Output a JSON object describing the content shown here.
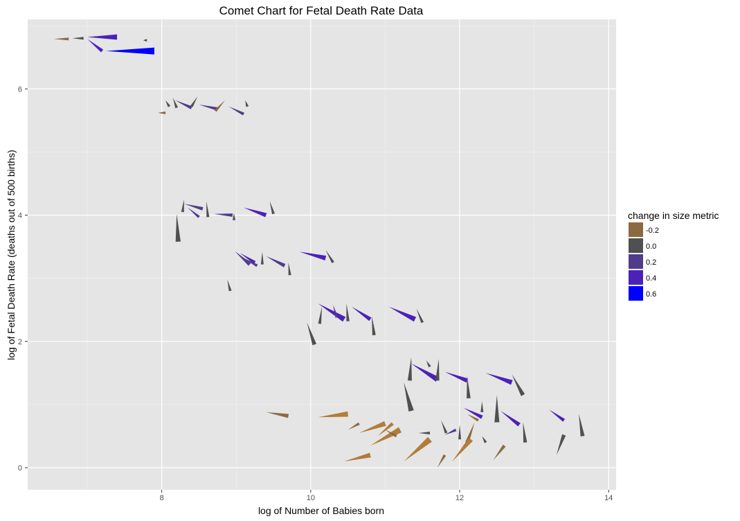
{
  "chart_data": {
    "type": "scatter",
    "title": "Comet Chart for Fetal Death Rate Data",
    "xlabel": "log of Number of Babies born",
    "ylabel": "log of Fetal Death Rate (deaths out of 500 births)",
    "xlim": [
      6.2,
      14.1
    ],
    "ylim": [
      -0.35,
      7.1
    ],
    "x_ticks": [
      8,
      10,
      12,
      14
    ],
    "y_ticks": [
      0,
      2,
      4,
      6
    ],
    "x_tick_labels": [
      "8",
      "10",
      "12",
      "14"
    ],
    "y_tick_labels": [
      "0",
      "2",
      "4",
      "6"
    ],
    "grid": true,
    "legend": {
      "title": "change in size metric",
      "position": "right",
      "items": [
        {
          "label": "-0.2",
          "color": "#8b6a42"
        },
        {
          "label": "0.0",
          "color": "#505050"
        },
        {
          "label": "0.2",
          "color": "#513c8b"
        },
        {
          "label": "0.4",
          "color": "#4b22b8"
        },
        {
          "label": "0.6",
          "color": "#0000ff"
        }
      ]
    },
    "comets": [
      {
        "x0": 6.55,
        "y0": 6.79,
        "x1": 6.75,
        "y1": 6.79,
        "c": "#8b6a42"
      },
      {
        "x0": 6.8,
        "y0": 6.8,
        "x1": 6.95,
        "y1": 6.8,
        "c": "#505050"
      },
      {
        "x0": 7.0,
        "y0": 6.82,
        "x1": 7.4,
        "y1": 6.82,
        "c": "#4b22b8"
      },
      {
        "x0": 7.0,
        "y0": 6.79,
        "x1": 7.2,
        "y1": 6.6,
        "c": "#4b22b8"
      },
      {
        "x0": 7.75,
        "y0": 6.77,
        "x1": 7.8,
        "y1": 6.77,
        "c": "#505050"
      },
      {
        "x0": 7.25,
        "y0": 6.6,
        "x1": 7.9,
        "y1": 6.6,
        "c": "#0000ff"
      },
      {
        "x0": 7.95,
        "y0": 5.62,
        "x1": 8.05,
        "y1": 5.62,
        "c": "#8b6a42"
      },
      {
        "x0": 8.05,
        "y0": 5.82,
        "x1": 8.1,
        "y1": 5.72,
        "c": "#505050"
      },
      {
        "x0": 8.15,
        "y0": 5.86,
        "x1": 8.2,
        "y1": 5.7,
        "c": "#505050"
      },
      {
        "x0": 8.18,
        "y0": 5.82,
        "x1": 8.4,
        "y1": 5.7,
        "c": "#513c8b"
      },
      {
        "x0": 8.48,
        "y0": 5.88,
        "x1": 8.4,
        "y1": 5.72,
        "c": "#505050"
      },
      {
        "x0": 8.5,
        "y0": 5.75,
        "x1": 8.75,
        "y1": 5.68,
        "c": "#513c8b"
      },
      {
        "x0": 8.85,
        "y0": 5.82,
        "x1": 8.72,
        "y1": 5.65,
        "c": "#8b6a42"
      },
      {
        "x0": 8.9,
        "y0": 5.72,
        "x1": 9.1,
        "y1": 5.6,
        "c": "#513c8b"
      },
      {
        "x0": 9.12,
        "y0": 5.82,
        "x1": 9.15,
        "y1": 5.72,
        "c": "#505050"
      },
      {
        "x0": 8.3,
        "y0": 4.25,
        "x1": 8.28,
        "y1": 4.05,
        "c": "#505050"
      },
      {
        "x0": 8.3,
        "y0": 4.18,
        "x1": 8.55,
        "y1": 4.1,
        "c": "#513c8b"
      },
      {
        "x0": 8.35,
        "y0": 4.12,
        "x1": 8.5,
        "y1": 3.97,
        "c": "#513c8b"
      },
      {
        "x0": 8.6,
        "y0": 4.22,
        "x1": 8.62,
        "y1": 3.97,
        "c": "#505050"
      },
      {
        "x0": 8.7,
        "y0": 4.02,
        "x1": 8.95,
        "y1": 4.0,
        "c": "#513c8b"
      },
      {
        "x0": 8.97,
        "y0": 4.03,
        "x1": 8.97,
        "y1": 3.92,
        "c": "#505050"
      },
      {
        "x0": 9.1,
        "y0": 4.12,
        "x1": 9.4,
        "y1": 4.0,
        "c": "#4b22b8"
      },
      {
        "x0": 9.45,
        "y0": 4.22,
        "x1": 9.5,
        "y1": 4.02,
        "c": "#505050"
      },
      {
        "x0": 8.2,
        "y0": 4.02,
        "x1": 8.22,
        "y1": 3.58,
        "c": "#505050"
      },
      {
        "x0": 8.98,
        "y0": 3.43,
        "x1": 9.18,
        "y1": 3.22,
        "c": "#513c8b"
      },
      {
        "x0": 9.05,
        "y0": 3.4,
        "x1": 9.25,
        "y1": 3.25,
        "c": "#4b22b8"
      },
      {
        "x0": 9.1,
        "y0": 3.32,
        "x1": 9.28,
        "y1": 3.2,
        "c": "#513c8b"
      },
      {
        "x0": 9.35,
        "y0": 3.42,
        "x1": 9.35,
        "y1": 3.22,
        "c": "#505050"
      },
      {
        "x0": 9.4,
        "y0": 3.35,
        "x1": 9.65,
        "y1": 3.2,
        "c": "#513c8b"
      },
      {
        "x0": 9.7,
        "y0": 3.25,
        "x1": 9.72,
        "y1": 3.05,
        "c": "#505050"
      },
      {
        "x0": 9.85,
        "y0": 3.42,
        "x1": 10.2,
        "y1": 3.32,
        "c": "#4b22b8"
      },
      {
        "x0": 10.2,
        "y0": 3.45,
        "x1": 10.3,
        "y1": 3.25,
        "c": "#505050"
      },
      {
        "x0": 8.88,
        "y0": 2.98,
        "x1": 8.92,
        "y1": 2.8,
        "c": "#505050"
      },
      {
        "x0": 10.1,
        "y0": 2.6,
        "x1": 10.45,
        "y1": 2.35,
        "c": "#4b22b8"
      },
      {
        "x0": 10.15,
        "y0": 2.55,
        "x1": 10.12,
        "y1": 2.28,
        "c": "#505050"
      },
      {
        "x0": 10.3,
        "y0": 2.58,
        "x1": 10.35,
        "y1": 2.38,
        "c": "#513c8b"
      },
      {
        "x0": 10.48,
        "y0": 2.6,
        "x1": 10.5,
        "y1": 2.32,
        "c": "#505050"
      },
      {
        "x0": 10.55,
        "y0": 2.55,
        "x1": 10.8,
        "y1": 2.35,
        "c": "#4b22b8"
      },
      {
        "x0": 10.82,
        "y0": 2.4,
        "x1": 10.85,
        "y1": 2.1,
        "c": "#505050"
      },
      {
        "x0": 11.05,
        "y0": 2.55,
        "x1": 11.4,
        "y1": 2.35,
        "c": "#4b22b8"
      },
      {
        "x0": 11.42,
        "y0": 2.52,
        "x1": 11.5,
        "y1": 2.3,
        "c": "#505050"
      },
      {
        "x0": 9.95,
        "y0": 2.3,
        "x1": 10.05,
        "y1": 1.95,
        "c": "#505050"
      },
      {
        "x0": 11.35,
        "y0": 1.75,
        "x1": 11.33,
        "y1": 1.38,
        "c": "#505050"
      },
      {
        "x0": 11.35,
        "y0": 1.65,
        "x1": 11.7,
        "y1": 1.4,
        "c": "#4b22b8"
      },
      {
        "x0": 11.55,
        "y0": 1.7,
        "x1": 11.6,
        "y1": 1.6,
        "c": "#505050"
      },
      {
        "x0": 11.72,
        "y0": 1.72,
        "x1": 11.7,
        "y1": 1.38,
        "c": "#505050"
      },
      {
        "x0": 11.8,
        "y0": 1.52,
        "x1": 12.1,
        "y1": 1.38,
        "c": "#4b22b8"
      },
      {
        "x0": 12.1,
        "y0": 1.45,
        "x1": 12.12,
        "y1": 1.1,
        "c": "#505050"
      },
      {
        "x0": 12.35,
        "y0": 1.5,
        "x1": 12.7,
        "y1": 1.35,
        "c": "#4b22b8"
      },
      {
        "x0": 12.7,
        "y0": 1.48,
        "x1": 12.85,
        "y1": 1.15,
        "c": "#505050"
      },
      {
        "x0": 11.25,
        "y0": 1.35,
        "x1": 11.35,
        "y1": 0.9,
        "c": "#505050"
      },
      {
        "x0": 12.5,
        "y0": 1.15,
        "x1": 12.5,
        "y1": 0.72,
        "c": "#505050"
      },
      {
        "x0": 12.3,
        "y0": 1.05,
        "x1": 12.3,
        "y1": 0.88,
        "c": "#505050"
      },
      {
        "x0": 12.05,
        "y0": 0.95,
        "x1": 12.3,
        "y1": 0.8,
        "c": "#4b22b8"
      },
      {
        "x0": 12.55,
        "y0": 0.9,
        "x1": 12.8,
        "y1": 0.68,
        "c": "#4b22b8"
      },
      {
        "x0": 13.2,
        "y0": 0.92,
        "x1": 13.4,
        "y1": 0.75,
        "c": "#4b22b8"
      },
      {
        "x0": 13.6,
        "y0": 0.85,
        "x1": 13.65,
        "y1": 0.5,
        "c": "#505050"
      },
      {
        "x0": 12.85,
        "y0": 0.72,
        "x1": 12.88,
        "y1": 0.4,
        "c": "#505050"
      },
      {
        "x0": 12.1,
        "y0": 0.85,
        "x1": 12.25,
        "y1": 0.75,
        "c": "#8b6a42"
      },
      {
        "x0": 11.75,
        "y0": 0.75,
        "x1": 11.82,
        "y1": 0.55,
        "c": "#505050"
      },
      {
        "x0": 11.8,
        "y0": 0.52,
        "x1": 11.95,
        "y1": 0.6,
        "c": "#513c8b"
      },
      {
        "x0": 12.0,
        "y0": 0.68,
        "x1": 12.0,
        "y1": 0.45,
        "c": "#505050"
      },
      {
        "x0": 12.2,
        "y0": 0.72,
        "x1": 12.1,
        "y1": 0.4,
        "c": "#8b6a42"
      },
      {
        "x0": 12.3,
        "y0": 0.5,
        "x1": 12.35,
        "y1": 0.4,
        "c": "#505050"
      },
      {
        "x0": 11.45,
        "y0": 0.55,
        "x1": 11.6,
        "y1": 0.55,
        "c": "#505050"
      },
      {
        "x0": 9.4,
        "y0": 0.88,
        "x1": 9.7,
        "y1": 0.82,
        "c": "#8b6a42"
      },
      {
        "x0": 10.1,
        "y0": 0.8,
        "x1": 10.5,
        "y1": 0.85,
        "c": "#b27c3b"
      },
      {
        "x0": 10.5,
        "y0": 0.6,
        "x1": 10.65,
        "y1": 0.7,
        "c": "#8b6a42"
      },
      {
        "x0": 10.65,
        "y0": 0.55,
        "x1": 11.0,
        "y1": 0.7,
        "c": "#b27c3b"
      },
      {
        "x0": 10.8,
        "y0": 0.35,
        "x1": 11.2,
        "y1": 0.6,
        "c": "#b27c3b"
      },
      {
        "x0": 10.9,
        "y0": 0.5,
        "x1": 11.1,
        "y1": 0.7,
        "c": "#b27c3b"
      },
      {
        "x0": 11.0,
        "y0": 0.6,
        "x1": 11.15,
        "y1": 0.5,
        "c": "#8b6a42"
      },
      {
        "x0": 10.45,
        "y0": 0.1,
        "x1": 10.8,
        "y1": 0.2,
        "c": "#b27c3b"
      },
      {
        "x0": 11.25,
        "y0": 0.1,
        "x1": 11.6,
        "y1": 0.45,
        "c": "#b27c3b"
      },
      {
        "x0": 11.7,
        "y0": 0.0,
        "x1": 11.8,
        "y1": 0.2,
        "c": "#8b6a42"
      },
      {
        "x0": 11.9,
        "y0": 0.1,
        "x1": 12.15,
        "y1": 0.45,
        "c": "#b27c3b"
      },
      {
        "x0": 12.45,
        "y0": 0.12,
        "x1": 12.6,
        "y1": 0.35,
        "c": "#8b6a42"
      },
      {
        "x0": 13.3,
        "y0": 0.2,
        "x1": 13.4,
        "y1": 0.52,
        "c": "#505050"
      }
    ]
  }
}
